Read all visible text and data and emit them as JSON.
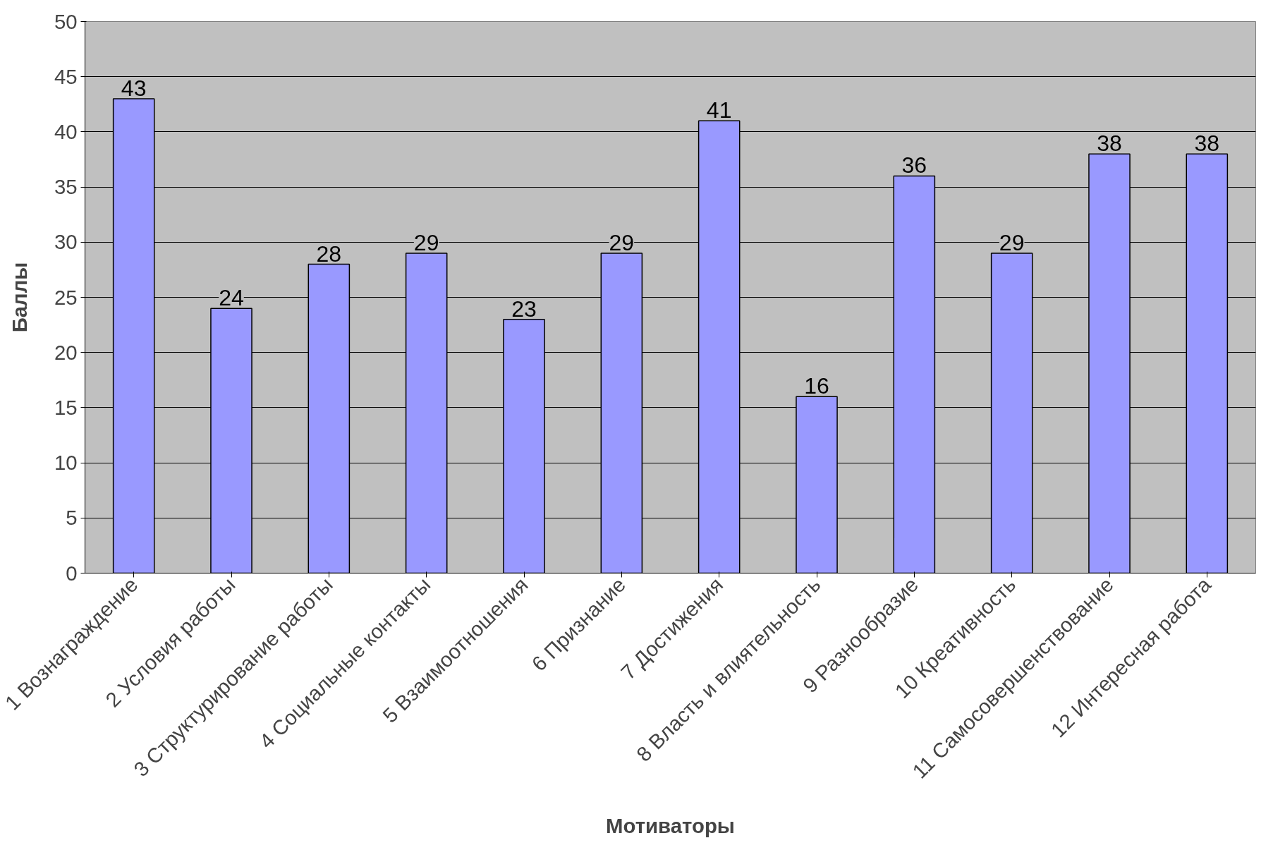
{
  "chart_data": {
    "type": "bar",
    "xlabel": "Мотиваторы",
    "ylabel": "Баллы",
    "categories": [
      "1 Вознаграждение",
      "2 Условия работы",
      "3 Структурирование работы",
      "4 Социальные контакты",
      "5 Взаимоотношения",
      "6 Признание",
      "7 Достижения",
      "8 Власть и влиятельность",
      "9 Разнообразие",
      "10 Креативность",
      "11 Самосовершенствование",
      "12 Интересная работа"
    ],
    "values": [
      43,
      24,
      28,
      29,
      23,
      29,
      41,
      16,
      36,
      29,
      38,
      38
    ],
    "color": "#9999ff",
    "ylim": [
      0,
      50
    ],
    "yticks": [
      0,
      5,
      10,
      15,
      20,
      25,
      30,
      35,
      40,
      45,
      50
    ],
    "grid": "y",
    "data_labels": true
  }
}
